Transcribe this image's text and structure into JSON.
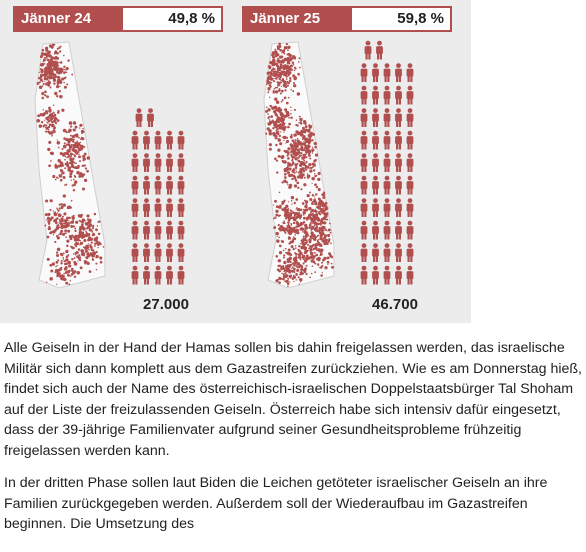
{
  "infographic": {
    "panels": [
      {
        "label": "Jänner 24",
        "percent": "49,8 %",
        "count": "27.000",
        "icon_rows": [
          2,
          5,
          5,
          5,
          5,
          5,
          5,
          5
        ]
      },
      {
        "label": "Jänner 25",
        "percent": "59,8 %",
        "count": "46.700",
        "icon_rows": [
          2,
          5,
          5,
          5,
          5,
          5,
          5,
          5,
          5,
          5,
          5
        ]
      }
    ],
    "accent_color": "#b14f4f"
  },
  "article": {
    "paragraphs": [
      "Alle Geiseln in der Hand der Hamas sollen bis dahin freigelassen werden, das israelische Militär sich dann komplett aus dem Gazastreifen zurückziehen. Wie es am Donnerstag hieß, findet sich auch der Name des österreichisch-israelischen Doppelstaatsbürger Tal Shoham auf der Liste der freizulassenden Geiseln. Österreich habe sich intensiv dafür eingesetzt, dass der 39-jährige Familienvater aufgrund seiner Gesundheitsprobleme frühzeitig freigelassen werden kann.",
      "In der dritten Phase sollen laut Biden die Leichen getöteter israelischer Geiseln an ihre Familien zurückgegeben werden. Außerdem soll der Wiederaufbau im Gazastreifen beginnen. Die Umsetzung des"
    ]
  }
}
